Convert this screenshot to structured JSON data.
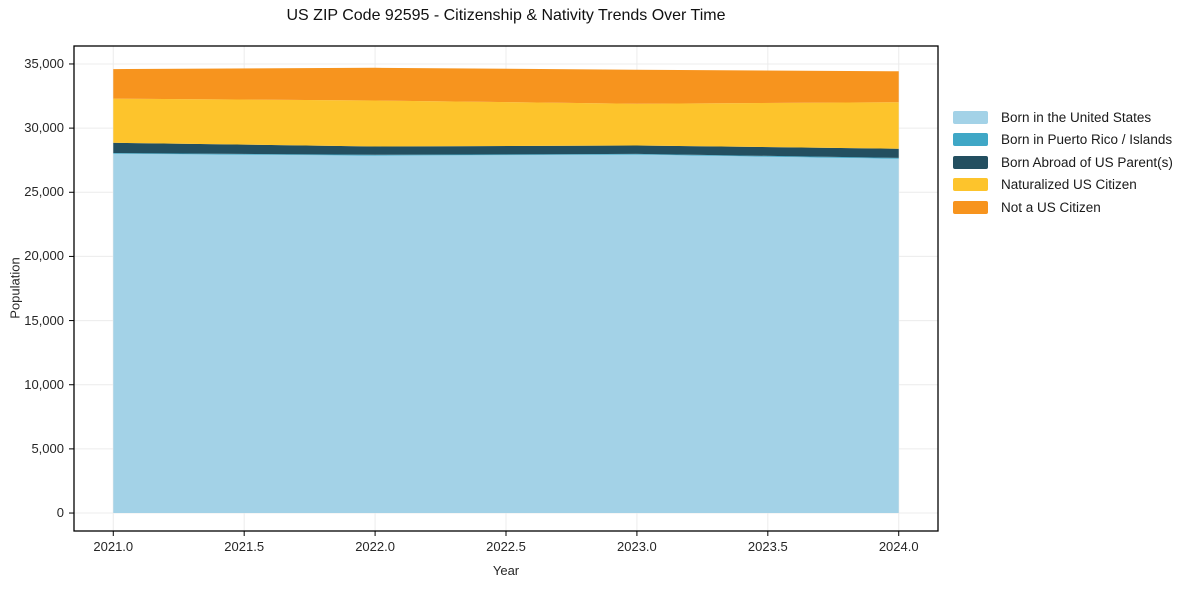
{
  "chart": {
    "title": "US ZIP Code 92595 - Citizenship & Nativity Trends Over Time",
    "xlabel": "Year",
    "ylabel": "Population"
  },
  "chart_data": {
    "type": "area",
    "stacked": true,
    "title": "US ZIP Code 92595 - Citizenship & Nativity Trends Over Time",
    "xlabel": "Year",
    "ylabel": "Population",
    "grid": true,
    "legend_position": "right",
    "x": [
      2021,
      2022,
      2023,
      2024
    ],
    "series": [
      {
        "name": "Born in the United States",
        "color": "#A3D2E7",
        "values": [
          28000,
          27860,
          27930,
          27610
        ]
      },
      {
        "name": "Born in Puerto Rico / Islands",
        "color": "#3FA7C6",
        "values": [
          60,
          60,
          60,
          70
        ]
      },
      {
        "name": "Born Abroad of US Parent(s)",
        "color": "#234F60",
        "values": [
          800,
          650,
          660,
          710
        ]
      },
      {
        "name": "Naturalized US Citizen",
        "color": "#FDC42C",
        "values": [
          3440,
          3580,
          3250,
          3630
        ]
      },
      {
        "name": "Not a US Citizen",
        "color": "#F7941E",
        "values": [
          2300,
          2550,
          2650,
          2410
        ]
      }
    ],
    "totals": [
      34600,
      34700,
      34550,
      34430
    ],
    "xlim": [
      2020.85,
      2024.15
    ],
    "ylim": [
      -1400,
      36400
    ],
    "x_ticks": [
      2021.0,
      2021.5,
      2022.0,
      2022.5,
      2023.0,
      2023.5,
      2024.0
    ],
    "x_tick_labels": [
      "2021.0",
      "2021.5",
      "2022.0",
      "2022.5",
      "2023.0",
      "2023.5",
      "2024.0"
    ],
    "y_ticks": [
      0,
      5000,
      10000,
      15000,
      20000,
      25000,
      30000,
      35000
    ],
    "y_tick_labels": [
      "0",
      "5,000",
      "10,000",
      "15,000",
      "20,000",
      "25,000",
      "30,000",
      "35,000"
    ],
    "colors": {
      "grid": "#ececec",
      "spine": "#000000",
      "tick_text": "#262626"
    }
  }
}
